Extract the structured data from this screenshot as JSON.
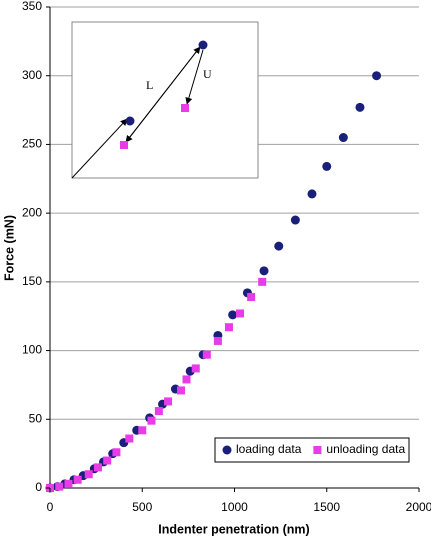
{
  "chart_data": {
    "type": "scatter",
    "xlabel": "Indenter penetration (nm)",
    "ylabel": "Force (mN)",
    "annotations": [
      "L",
      "U"
    ],
    "xlim": [
      0,
      2000
    ],
    "xticks": [
      0,
      500,
      1000,
      1500,
      2000
    ],
    "ylim": [
      0,
      350
    ],
    "yticks": [
      0,
      50,
      100,
      150,
      200,
      250,
      300,
      350
    ],
    "grid": true,
    "legend": "lower right",
    "series": [
      {
        "name": "loading data",
        "color": "#1a1f7a",
        "marker": "circle",
        "x": [
          0,
          40,
          80,
          130,
          180,
          240,
          290,
          340,
          400,
          470,
          540,
          610,
          680,
          760,
          830,
          910,
          990,
          1070,
          1160,
          1240,
          1330,
          1420,
          1500,
          1590,
          1680,
          1770
        ],
        "values": [
          0,
          1,
          3,
          6,
          9,
          14,
          19,
          25,
          33,
          42,
          51,
          61,
          72,
          85,
          97,
          111,
          126,
          142,
          158,
          176,
          195,
          214,
          234,
          255,
          277,
          300
        ]
      },
      {
        "name": "unloading data",
        "color": "#e83ce8",
        "marker": "square",
        "x": [
          0,
          50,
          100,
          150,
          210,
          260,
          310,
          360,
          430,
          500,
          550,
          590,
          640,
          710,
          740,
          790,
          850,
          910,
          970,
          1030,
          1090,
          1150
        ],
        "values": [
          0,
          1,
          3,
          6,
          10,
          15,
          20,
          26,
          36,
          42,
          49,
          56,
          63,
          71,
          79,
          87,
          97,
          107,
          117,
          127,
          139,
          150
        ]
      }
    ]
  }
}
